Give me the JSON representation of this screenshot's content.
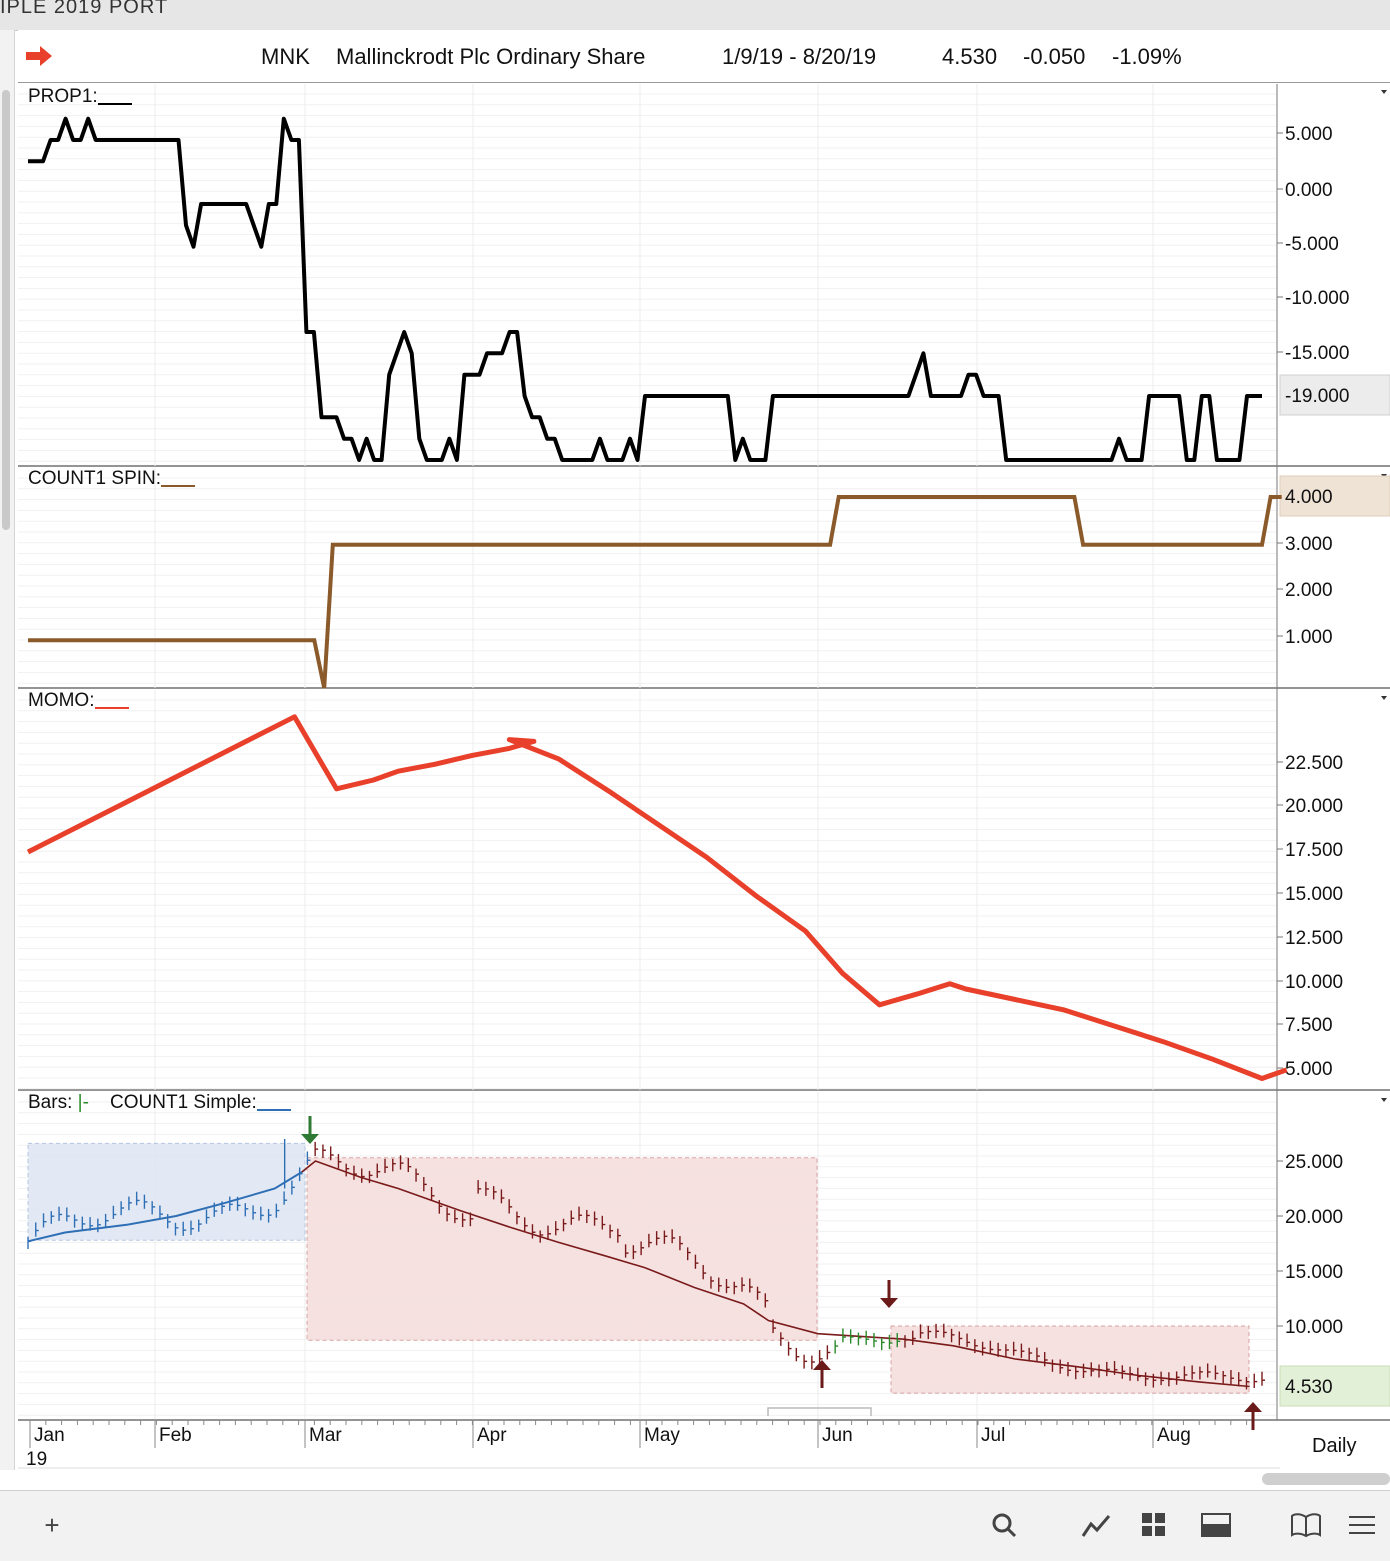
{
  "window": {
    "title_fragment": "IPLE 2019 PORT"
  },
  "header": {
    "symbol": "MNK",
    "name": "Mallinckrodt Plc Ordinary Share",
    "range": "1/9/19 - 8/20/19",
    "last": "4.530",
    "change": "-0.050",
    "pct": "-1.09%"
  },
  "colors": {
    "prop": "#000000",
    "count": "#8a5a2b",
    "momo": "#e8402a",
    "up_box": "#dfe6f3",
    "down_box": "#f6dede",
    "up_bar": "#2e6fb5",
    "down_bar": "#7a1a1a",
    "green_bar": "#2a8a2a"
  },
  "footer": {
    "period": "Daily"
  },
  "chart_data": [
    {
      "type": "line",
      "title": "PROP1:",
      "y_ticks": [
        "5.000",
        "0.000",
        "-5.000",
        "-10.000",
        "-15.000"
      ],
      "last_label": "-19.000",
      "ylim": [
        -25,
        8
      ],
      "series": [
        {
          "values": [
            3,
            3,
            3,
            5,
            5,
            7,
            5,
            5,
            7,
            5,
            5,
            5,
            5,
            5,
            5,
            5,
            5,
            5,
            5,
            5,
            5,
            -3,
            -5,
            -1,
            -1,
            -1,
            -1,
            -1,
            -1,
            -1,
            -3,
            -5,
            -1,
            -1,
            7,
            5,
            5,
            -13,
            -13,
            -21,
            -21,
            -21,
            -23,
            -23,
            -25,
            -23,
            -25,
            -25,
            -17,
            -15,
            -13,
            -15,
            -23,
            -25,
            -25,
            -25,
            -23,
            -25,
            -17,
            -17,
            -17,
            -15,
            -15,
            -15,
            -13,
            -13,
            -19,
            -21,
            -21,
            -23,
            -23,
            -25,
            -25,
            -25,
            -25,
            -25,
            -23,
            -25,
            -25,
            -25,
            -23,
            -25,
            -19,
            -19,
            -19,
            -19,
            -19,
            -19,
            -19,
            -19,
            -19,
            -19,
            -19,
            -19,
            -25,
            -23,
            -25,
            -25,
            -25,
            -19,
            -19,
            -19,
            -19,
            -19,
            -19,
            -19,
            -19,
            -19,
            -19,
            -19,
            -19,
            -19,
            -19,
            -19,
            -19,
            -19,
            -19,
            -19,
            -17,
            -15,
            -19,
            -19,
            -19,
            -19,
            -19,
            -17,
            -17,
            -19,
            -19,
            -19,
            -25,
            -25,
            -25,
            -25,
            -25,
            -25,
            -25,
            -25,
            -25,
            -25,
            -25,
            -25,
            -25,
            -25,
            -25,
            -23,
            -25,
            -25,
            -25,
            -19,
            -19,
            -19,
            -19,
            -19,
            -25,
            -25,
            -19,
            -19,
            -25,
            -25,
            -25,
            -25,
            -19,
            -19,
            -19
          ]
        }
      ]
    },
    {
      "type": "line",
      "title": "COUNT1 SPIN:",
      "y_ticks": [
        "3.000",
        "2.000",
        "1.000"
      ],
      "last_label": "4.000",
      "ylim": [
        0,
        4.3
      ],
      "series": [
        {
          "points": [
            [
              0,
              1
            ],
            [
              0.232,
              1
            ],
            [
              0.24,
              0
            ],
            [
              0.247,
              3
            ],
            [
              0.65,
              3
            ],
            [
              0.657,
              4
            ],
            [
              0.848,
              4
            ],
            [
              0.855,
              3
            ],
            [
              1.0,
              3
            ],
            [
              1.007,
              4
            ],
            [
              1.016,
              4
            ]
          ]
        }
      ]
    },
    {
      "type": "line",
      "title": "MOMO:",
      "y_ticks": [
        "22.500",
        "20.000",
        "17.500",
        "15.000",
        "12.500",
        "10.000",
        "7.500",
        "5.000"
      ],
      "ylim": [
        4,
        26
      ],
      "series": [
        {
          "points": [
            [
              0,
              17.3
            ],
            [
              0.216,
              25
            ],
            [
              0.25,
              20.9
            ],
            [
              0.28,
              21.4
            ],
            [
              0.3,
              21.9
            ],
            [
              0.33,
              22.3
            ],
            [
              0.36,
              22.8
            ],
            [
              0.39,
              23.2
            ],
            [
              0.41,
              23.6
            ],
            [
              0.39,
              23.7
            ],
            [
              0.43,
              22.6
            ],
            [
              0.47,
              20.8
            ],
            [
              0.51,
              18.9
            ],
            [
              0.55,
              17
            ],
            [
              0.59,
              14.8
            ],
            [
              0.63,
              12.8
            ],
            [
              0.66,
              10.4
            ],
            [
              0.69,
              8.6
            ],
            [
              0.72,
              9.2
            ],
            [
              0.747,
              9.8
            ],
            [
              0.76,
              9.5
            ],
            [
              0.8,
              8.9
            ],
            [
              0.84,
              8.3
            ],
            [
              0.88,
              7.4
            ],
            [
              0.92,
              6.5
            ],
            [
              0.96,
              5.5
            ],
            [
              1.0,
              4.4
            ],
            [
              1.02,
              4.9
            ]
          ]
        }
      ]
    },
    {
      "type": "candlestick",
      "title": "Bars:",
      "bars_marker": "|-",
      "subtitle": "COUNT1 Simple:",
      "y_ticks": [
        "25.000",
        "20.000",
        "15.000",
        "10.000"
      ],
      "last_label": "4.530",
      "ylim": [
        2.5,
        28
      ],
      "x_ticks": [
        "Jan",
        "Feb",
        "Mar",
        "Apr",
        "May",
        "Jun",
        "Jul",
        "Aug"
      ],
      "year_label": "19",
      "trend": [
        [
          0,
          17.7
        ],
        [
          0.03,
          18.5
        ],
        [
          0.08,
          19.2
        ],
        [
          0.12,
          20
        ],
        [
          0.16,
          21.2
        ],
        [
          0.2,
          22.5
        ],
        [
          0.222,
          24
        ],
        [
          0.233,
          25
        ],
        [
          0.27,
          23.5
        ],
        [
          0.3,
          22.5
        ],
        [
          0.35,
          20.5
        ],
        [
          0.39,
          19
        ],
        [
          0.43,
          17.6
        ],
        [
          0.47,
          16.3
        ],
        [
          0.5,
          15.3
        ],
        [
          0.54,
          13.5
        ],
        [
          0.58,
          12
        ],
        [
          0.6,
          10.5
        ],
        [
          0.64,
          9.3
        ],
        [
          0.71,
          8.8
        ],
        [
          0.75,
          8.2
        ],
        [
          0.8,
          7
        ],
        [
          0.85,
          6.3
        ],
        [
          0.9,
          5.5
        ],
        [
          0.95,
          4.9
        ],
        [
          0.99,
          4.5
        ]
      ]
    }
  ]
}
